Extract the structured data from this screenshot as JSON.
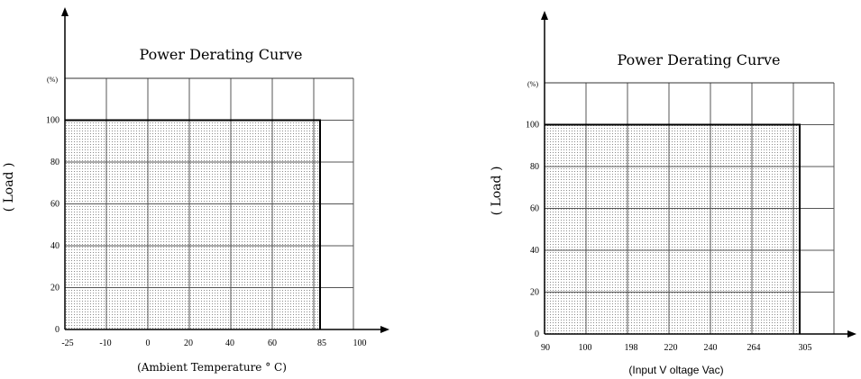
{
  "chart_data": [
    {
      "type": "area",
      "title": "Power Derating Curve",
      "xlabel": "(Ambient Temperature ° C)",
      "ylabel": "( Load )",
      "y_unit": "(%)",
      "x_ticks": [
        "-25",
        "-10",
        "0",
        "20",
        "40",
        "60",
        "85",
        "100"
      ],
      "y_ticks": [
        "0",
        "20",
        "40",
        "60",
        "80",
        "100"
      ],
      "x": [
        "-25",
        "85"
      ],
      "series": [
        {
          "values": [
            100,
            100
          ]
        }
      ],
      "ylim": [
        0,
        120
      ],
      "grid": true
    },
    {
      "type": "area",
      "title": "Power Derating Curve",
      "xlabel": "(Input V oltage Vac)",
      "ylabel": "( Load )",
      "y_unit": "(%)",
      "x_ticks": [
        "90",
        "100",
        "198",
        "220",
        "240",
        "264",
        "305"
      ],
      "y_ticks": [
        "0",
        "20",
        "40",
        "60",
        "80",
        "100"
      ],
      "x": [
        "90",
        "305"
      ],
      "series": [
        {
          "values": [
            100,
            100
          ]
        }
      ],
      "ylim": [
        0,
        120
      ],
      "grid": true
    }
  ]
}
